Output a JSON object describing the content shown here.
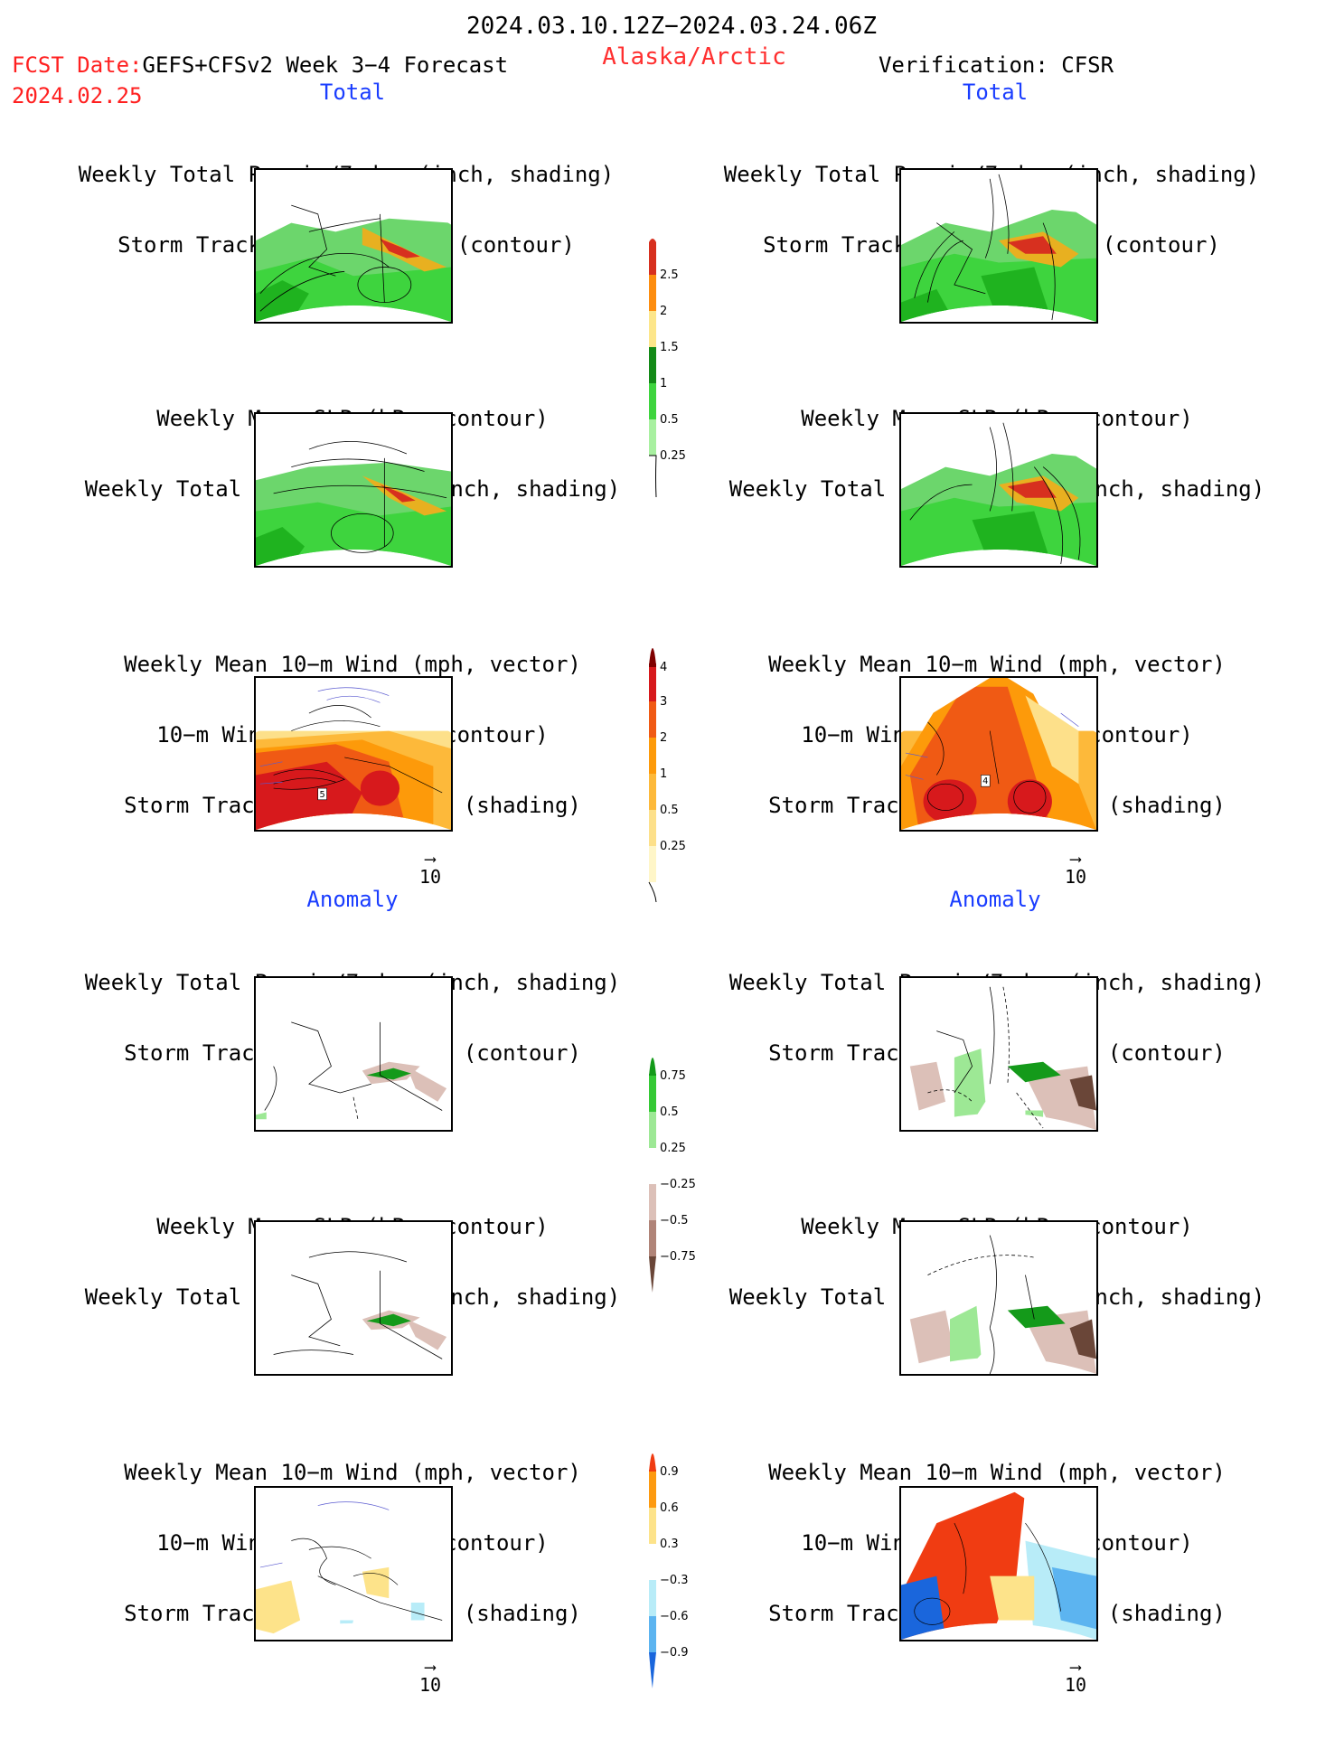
{
  "header": {
    "period": "2024.03.10.12Z−2024.03.24.06Z",
    "fcst_prefix": "FCST Date:",
    "model": "GEFS+CFSv2 Week 3−4 Forecast",
    "fcst_date": "2024.02.25",
    "region": "Alaska/Arctic",
    "verification": "Verification: CFSR"
  },
  "sections": {
    "total": "Total",
    "anomaly": "Anomaly"
  },
  "panel_titles": {
    "precip_storm": [
      "Weekly Total Precip/7−day (inch, shading)",
      "Storm Track Density/7−day (contour)"
    ],
    "slp_precip": [
      "Weekly Mean SLP (hPa, contour)",
      "Weekly Total Precip/7−day (inch, shading)"
    ],
    "wind_storm": [
      "Weekly Mean 10−m Wind (mph, vector)",
      "10−m Wind Speed (mph, contour)",
      "Storm Track Density/7−day (shading)"
    ]
  },
  "vector_reference": "10",
  "colorbars": {
    "precip_total": {
      "labels": [
        "2.5",
        "2",
        "1.5",
        "1",
        "0.5",
        "0.25"
      ],
      "colors": [
        "#d7301f",
        "#fd8d0f",
        "#fde68a",
        "#138a17",
        "#3ed43e",
        "#a8f0a0"
      ]
    },
    "storm_total": {
      "labels": [
        "4",
        "3",
        "2",
        "1",
        "0.5",
        "0.25"
      ],
      "colors": [
        "#7f0000",
        "#d7191c",
        "#f05a14",
        "#fd9a0a",
        "#fdb93a",
        "#fde08a",
        "#fff6c8"
      ]
    },
    "precip_anom": {
      "labels": [
        "0.75",
        "0.5",
        "0.25",
        "−0.25",
        "−0.5",
        "−0.75"
      ],
      "colors": [
        "#149a1a",
        "#35c935",
        "#9de895",
        "#ffffff",
        "#dcc0b8",
        "#b08478",
        "#6a4638"
      ]
    },
    "storm_anom": {
      "labels": [
        "0.9",
        "0.6",
        "0.3",
        "−0.3",
        "−0.6",
        "−0.9"
      ],
      "colors": [
        "#f03c12",
        "#fd9a10",
        "#fde38a",
        "#ffffff",
        "#b8ecf8",
        "#5cb4f0",
        "#1a66dc"
      ]
    },
    "map_labels": {
      "forecast_wind_total": "5",
      "verification_wind_total": "4"
    }
  }
}
